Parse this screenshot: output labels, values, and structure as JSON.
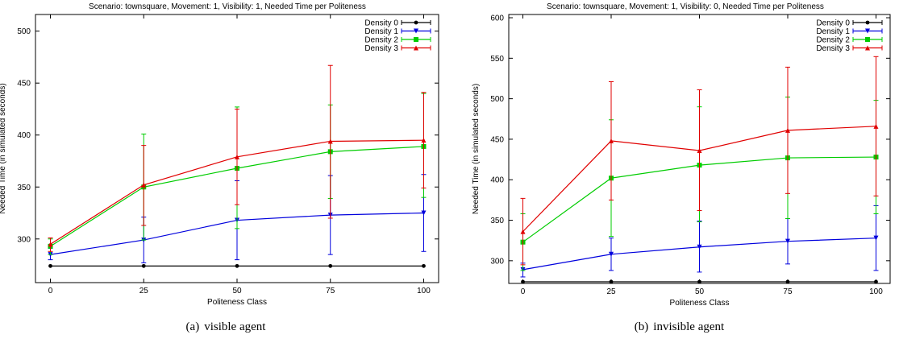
{
  "chart_data": [
    {
      "type": "line",
      "title": "Scenario: townsquare, Movement: 1, Visibility: 1, Needed Time per Politeness",
      "xlabel": "Politeness Class",
      "ylabel": "Needed Time (in simulated seconds)",
      "x": [
        0,
        25,
        50,
        75,
        100
      ],
      "xticks": [
        "0",
        "25",
        "50",
        "75",
        "100"
      ],
      "xlim": [
        -4,
        104
      ],
      "ylim": [
        258,
        516
      ],
      "yticks": [
        300,
        350,
        400,
        450,
        500
      ],
      "legend_position": "top-right",
      "caption_tag": "(a)",
      "caption": "visible agent",
      "series": [
        {
          "name": "Density 0",
          "color": "#000000",
          "marker": "circle",
          "values": [
            274,
            274,
            274,
            274,
            274
          ],
          "err_low": [
            274,
            274,
            274,
            274,
            274
          ],
          "err_high": [
            274,
            274,
            274,
            274,
            274
          ]
        },
        {
          "name": "Density 1",
          "color": "#0000dd",
          "marker": "triangle-down",
          "values": [
            285,
            299,
            318,
            323,
            325
          ],
          "err_low": [
            280,
            277,
            280,
            285,
            288
          ],
          "err_high": [
            291,
            321,
            356,
            361,
            362
          ]
        },
        {
          "name": "Density 2",
          "color": "#00cc00",
          "marker": "square",
          "values": [
            293,
            350,
            368,
            384,
            389
          ],
          "err_low": [
            285,
            299,
            310,
            339,
            340
          ],
          "err_high": [
            300,
            401,
            427,
            429,
            440
          ]
        },
        {
          "name": "Density 3",
          "color": "#e00000",
          "marker": "triangle-up",
          "values": [
            295,
            352,
            379,
            394,
            395
          ],
          "err_low": [
            288,
            313,
            333,
            320,
            349
          ],
          "err_high": [
            301,
            390,
            425,
            467,
            441
          ]
        }
      ]
    },
    {
      "type": "line",
      "title": "Scenario: townsquare, Movement: 1, Visibility: 0, Needed Time per Politeness",
      "xlabel": "Politeness Class",
      "ylabel": "Needed Time (in simulated seconds)",
      "x": [
        0,
        25,
        50,
        75,
        100
      ],
      "xticks": [
        "0",
        "25",
        "50",
        "75",
        "100"
      ],
      "xlim": [
        -4,
        104
      ],
      "ylim": [
        272,
        604
      ],
      "yticks": [
        300,
        350,
        400,
        450,
        500,
        550,
        600
      ],
      "legend_position": "top-right",
      "caption_tag": "(b)",
      "caption": "invisible agent",
      "series": [
        {
          "name": "Density 0",
          "color": "#000000",
          "marker": "circle",
          "values": [
            274,
            274,
            274,
            274,
            274
          ],
          "err_low": [
            274,
            274,
            274,
            274,
            274
          ],
          "err_high": [
            274,
            274,
            274,
            274,
            274
          ]
        },
        {
          "name": "Density 1",
          "color": "#0000dd",
          "marker": "triangle-down",
          "values": [
            289,
            308,
            317,
            324,
            328
          ],
          "err_low": [
            280,
            288,
            286,
            296,
            288
          ],
          "err_high": [
            297,
            328,
            349,
            352,
            368
          ]
        },
        {
          "name": "Density 2",
          "color": "#00cc00",
          "marker": "square",
          "values": [
            323,
            402,
            418,
            427,
            428
          ],
          "err_low": [
            288,
            330,
            348,
            352,
            358
          ],
          "err_high": [
            358,
            474,
            490,
            502,
            498
          ]
        },
        {
          "name": "Density 3",
          "color": "#e00000",
          "marker": "triangle-up",
          "values": [
            336,
            448,
            436,
            461,
            466
          ],
          "err_low": [
            295,
            375,
            362,
            383,
            380
          ],
          "err_high": [
            377,
            521,
            511,
            539,
            552
          ]
        }
      ]
    }
  ]
}
